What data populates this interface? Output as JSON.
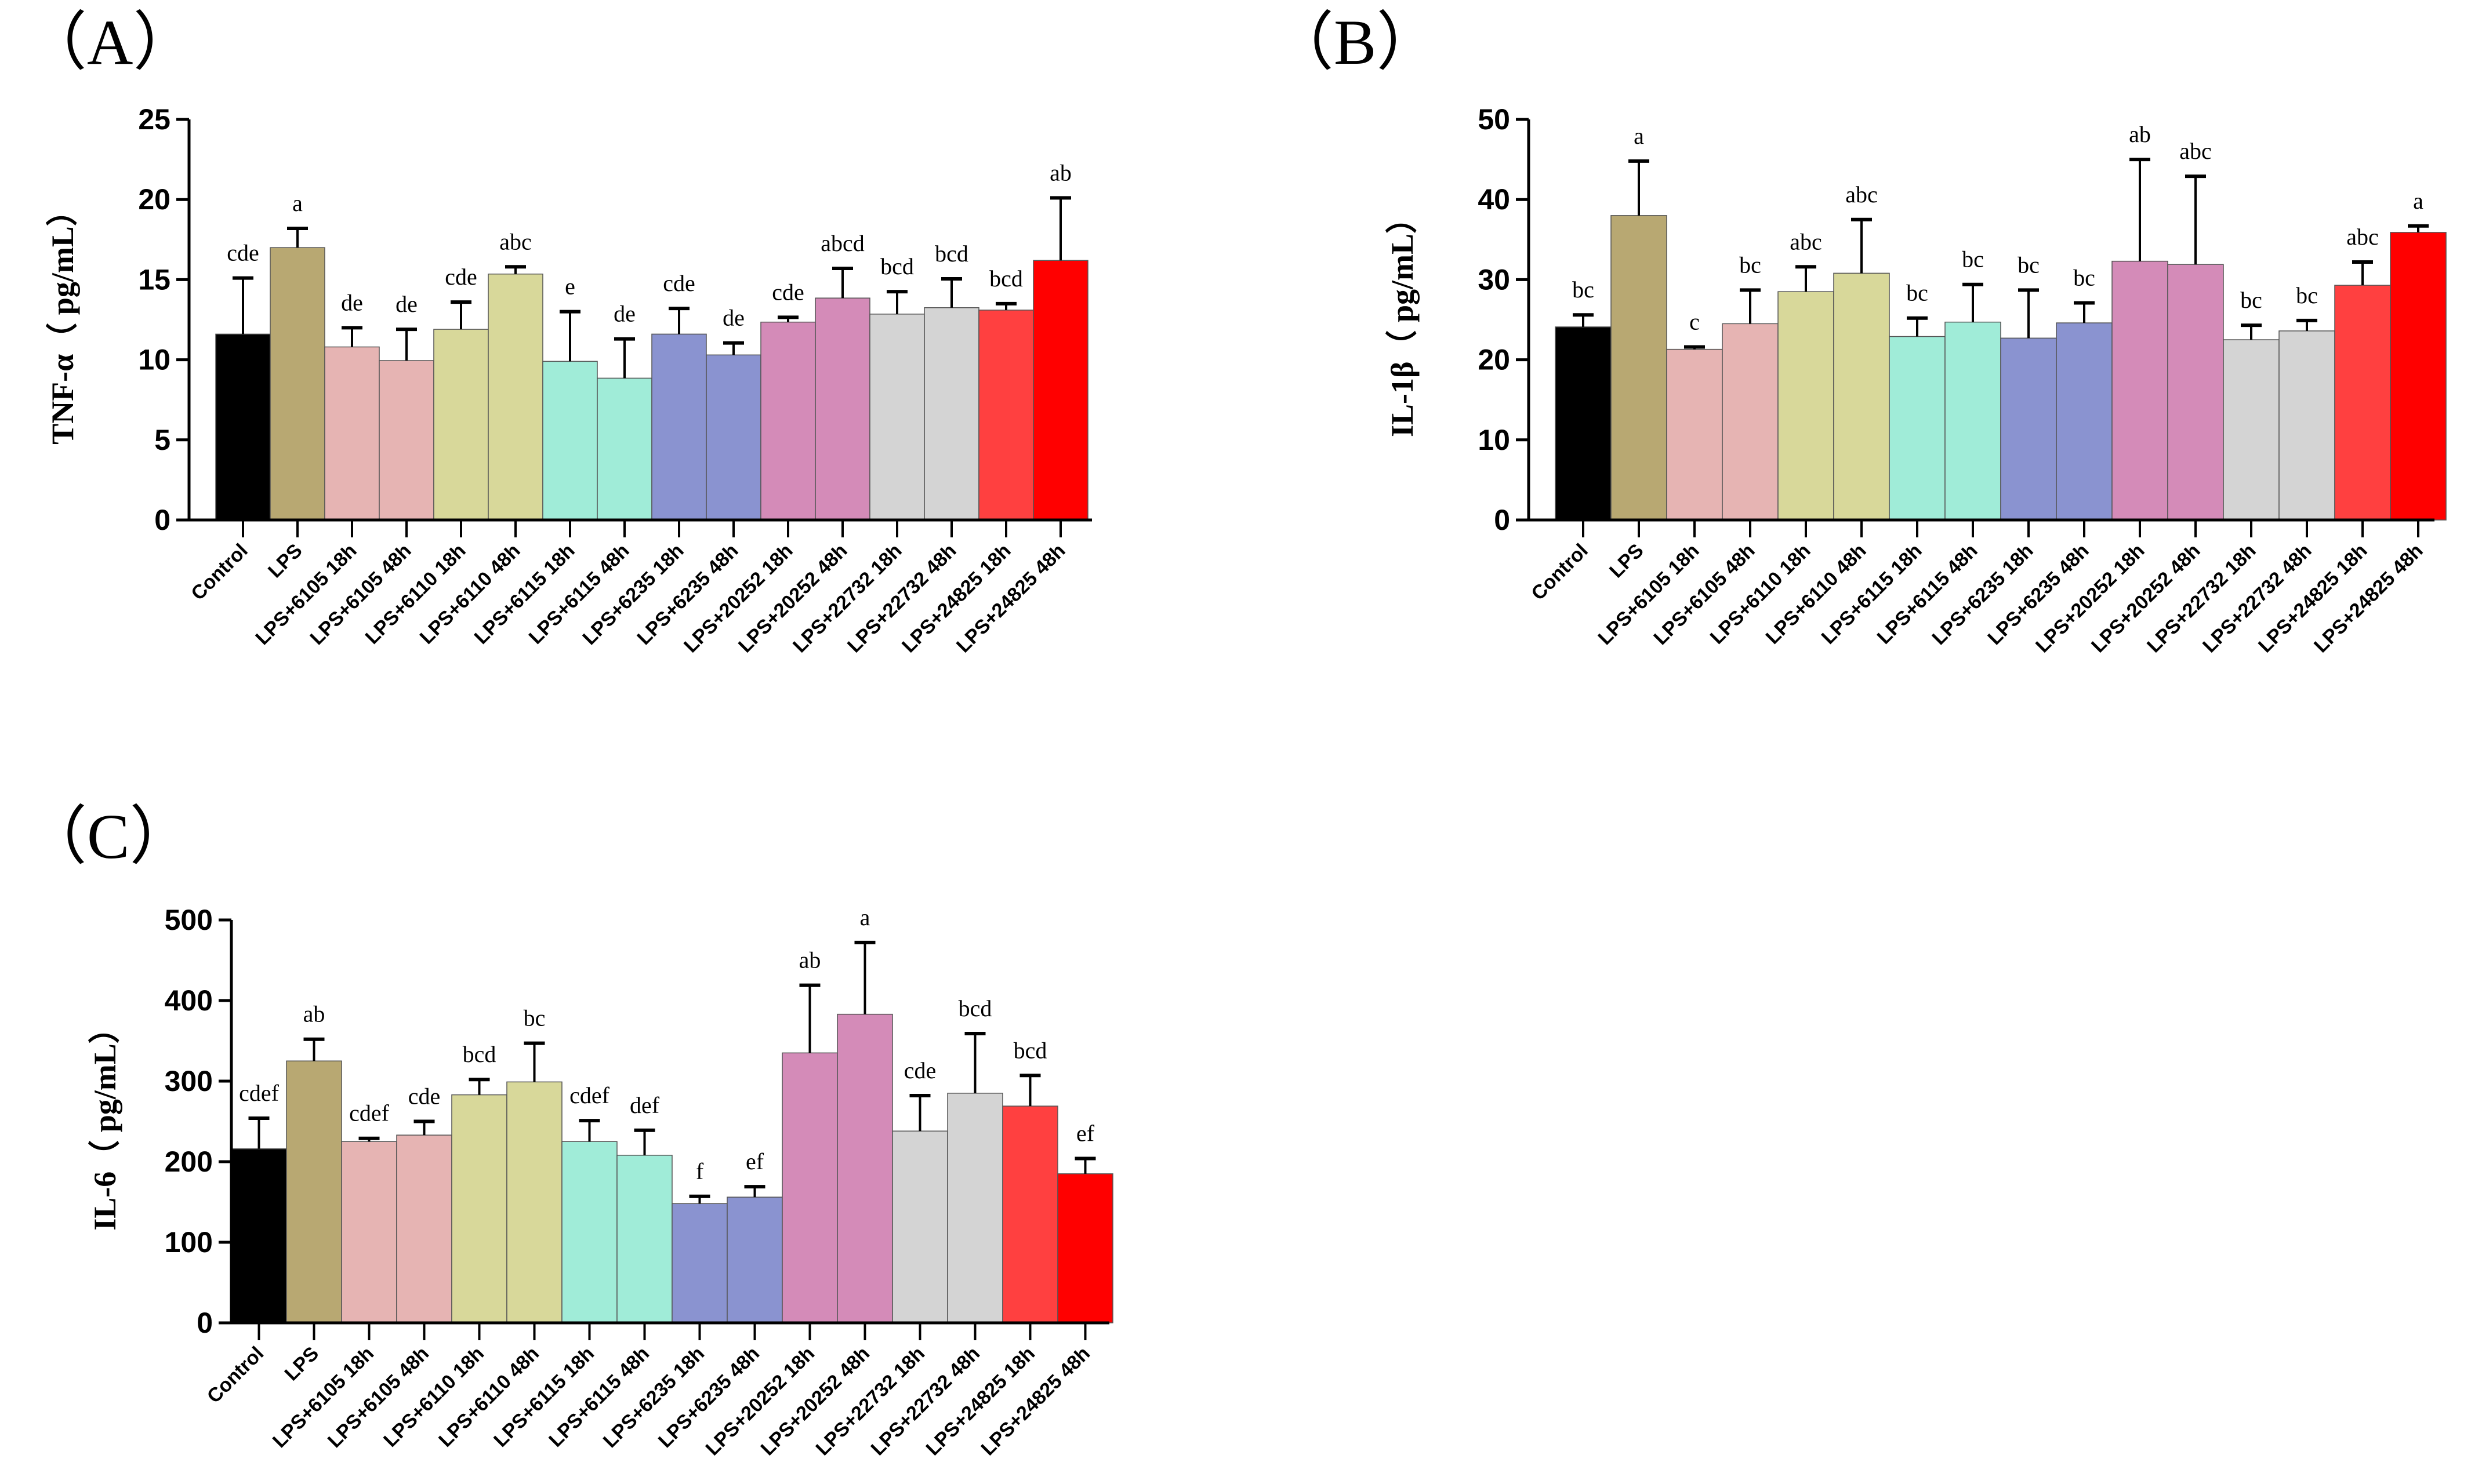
{
  "chart_data": [
    {
      "type": "bar",
      "panel": "（A）",
      "title": "",
      "xlabel": "",
      "ylabel": "TNF-α（ pg/mL）",
      "ylim": [
        0,
        25
      ],
      "yticks": [
        0,
        5,
        10,
        15,
        20,
        25
      ],
      "categories": [
        "Control",
        "LPS",
        "LPS+6105 18h",
        "LPS+6105 48h",
        "LPS+6110 18h",
        "LPS+6110 48h",
        "LPS+6115 18h",
        "LPS+6115 48h",
        "LPS+6235 18h",
        "LPS+6235 48h",
        "LPS+20252 18h",
        "LPS+20252 48h",
        "LPS+22732 18h",
        "LPS+22732 48h",
        "LPS+24825 18h",
        "LPS+24825 48h"
      ],
      "values": [
        11.6,
        17.0,
        10.8,
        9.95,
        11.9,
        15.35,
        9.9,
        8.85,
        11.6,
        10.3,
        12.35,
        13.85,
        12.85,
        13.25,
        13.1,
        16.2
      ],
      "error_upper": [
        15.1,
        18.2,
        12.0,
        11.9,
        13.6,
        15.8,
        13.0,
        11.3,
        13.2,
        11.05,
        12.65,
        15.7,
        14.25,
        15.05,
        13.5,
        20.1
      ],
      "letters": [
        "cde",
        "a",
        "de",
        "de",
        "cde",
        "abc",
        "e",
        "de",
        "cde",
        "de",
        "cde",
        "abcd",
        "bcd",
        "bcd",
        "bcd",
        "ab"
      ]
    },
    {
      "type": "bar",
      "panel": "（B）",
      "title": "",
      "xlabel": "",
      "ylabel": "IL-1β（ pg/mL）",
      "ylim": [
        0,
        50
      ],
      "yticks": [
        0,
        10,
        20,
        30,
        40,
        50
      ],
      "categories": [
        "Control",
        "LPS",
        "LPS+6105 18h",
        "LPS+6105 48h",
        "LPS+6110 18h",
        "LPS+6110 48h",
        "LPS+6115 18h",
        "LPS+6115 48h",
        "LPS+6235 18h",
        "LPS+6235 48h",
        "LPS+20252 18h",
        "LPS+20252 48h",
        "LPS+22732 18h",
        "LPS+22732 48h",
        "LPS+24825 18h",
        "LPS+24825 48h"
      ],
      "values": [
        24.1,
        38.0,
        21.3,
        24.5,
        28.5,
        30.8,
        22.9,
        24.7,
        22.7,
        24.6,
        32.3,
        31.9,
        22.5,
        23.6,
        29.3,
        35.9
      ],
      "error_upper": [
        25.6,
        44.8,
        21.6,
        28.7,
        31.6,
        37.5,
        25.2,
        29.4,
        28.7,
        27.1,
        45.0,
        42.9,
        24.3,
        24.9,
        32.2,
        36.7
      ],
      "letters": [
        "bc",
        "a",
        "c",
        "bc",
        "abc",
        "abc",
        "bc",
        "bc",
        "bc",
        "bc",
        "ab",
        "abc",
        "bc",
        "bc",
        "abc",
        "a"
      ]
    },
    {
      "type": "bar",
      "panel": "（C）",
      "title": "",
      "xlabel": "",
      "ylabel": "IL-6（ pg/mL）",
      "ylim": [
        0,
        500
      ],
      "yticks": [
        0,
        100,
        200,
        300,
        400,
        500
      ],
      "categories": [
        "Control",
        "LPS",
        "LPS+6105 18h",
        "LPS+6105 48h",
        "LPS+6110 18h",
        "LPS+6110 48h",
        "LPS+6115 18h",
        "LPS+6115 48h",
        "LPS+6235 18h",
        "LPS+6235 48h",
        "LPS+20252 18h",
        "LPS+20252 48h",
        "LPS+22732 18h",
        "LPS+22732 48h",
        "LPS+24825 18h",
        "LPS+24825 48h"
      ],
      "values": [
        216,
        325,
        225,
        233,
        283,
        299,
        225,
        208,
        148,
        156,
        335,
        383,
        238,
        285,
        269,
        185
      ],
      "error_upper": [
        254,
        352,
        229,
        250,
        302,
        347,
        251,
        239,
        157,
        169,
        419,
        472,
        282,
        359,
        307,
        204
      ],
      "letters": [
        "cdef",
        "ab",
        "cdef",
        "cde",
        "bcd",
        "bc",
        "cdef",
        "def",
        "f",
        "ef",
        "ab",
        "a",
        "cde",
        "bcd",
        "bcd",
        "ef"
      ]
    }
  ],
  "colors": [
    "#000000",
    "#b8a872",
    "#e6b4b3",
    "#e6b4b3",
    "#d8d89a",
    "#d8d89a",
    "#a0ecd8",
    "#a0ecd8",
    "#8a93d0",
    "#8a93d0",
    "#d48bb8",
    "#d48bb8",
    "#d4d4d4",
    "#d4d4d4",
    "#ff4040",
    "#ff0000"
  ]
}
